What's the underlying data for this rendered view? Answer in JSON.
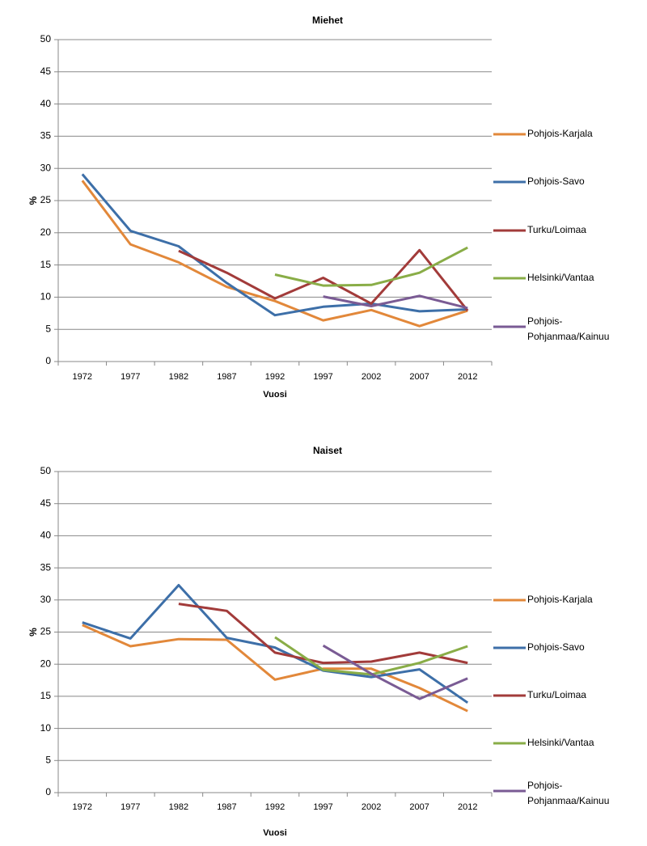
{
  "chart_data": [
    {
      "type": "line",
      "title": "Miehet",
      "xlabel": "Vuosi",
      "ylabel": "%",
      "categories": [
        "1972",
        "1977",
        "1982",
        "1987",
        "1992",
        "1997",
        "2002",
        "2007",
        "2012"
      ],
      "ylim": [
        0,
        50
      ],
      "yticks": [
        0,
        5,
        10,
        15,
        20,
        25,
        30,
        35,
        40,
        45,
        50
      ],
      "grid": true,
      "legend": "right",
      "series": [
        {
          "name": "Pohjois-Karjala",
          "color": "#e2883a",
          "values": [
            28.1,
            18.2,
            15.4,
            11.6,
            9.4,
            6.4,
            8.0,
            5.5,
            7.9
          ]
        },
        {
          "name": "Pohjois-Savo",
          "color": "#3d6fa8",
          "values": [
            29.1,
            20.3,
            17.9,
            12.2,
            7.2,
            8.5,
            9.0,
            7.8,
            8.1
          ]
        },
        {
          "name": "Turku/Loimaa",
          "color": "#a23b3a",
          "values": [
            null,
            null,
            17.2,
            13.8,
            9.8,
            13.0,
            9.0,
            17.3,
            7.9
          ]
        },
        {
          "name": "Helsinki/Vantaa",
          "color": "#89ad47",
          "values": [
            null,
            null,
            null,
            null,
            13.5,
            11.8,
            11.9,
            13.8,
            17.7
          ]
        },
        {
          "name": "Pohjois-Pohjanmaa/Kainuu",
          "color": "#7a5b94",
          "values": [
            null,
            null,
            null,
            null,
            null,
            10.1,
            8.6,
            10.2,
            8.3
          ]
        }
      ]
    },
    {
      "type": "line",
      "title": "Naiset",
      "xlabel": "Vuosi",
      "ylabel": "%",
      "categories": [
        "1972",
        "1977",
        "1982",
        "1987",
        "1992",
        "1997",
        "2002",
        "2007",
        "2012"
      ],
      "ylim": [
        0,
        50
      ],
      "yticks": [
        0,
        5,
        10,
        15,
        20,
        25,
        30,
        35,
        40,
        45,
        50
      ],
      "grid": true,
      "legend": "right",
      "series": [
        {
          "name": "Pohjois-Karjala",
          "color": "#e2883a",
          "values": [
            26.1,
            22.8,
            23.9,
            23.8,
            17.6,
            19.3,
            19.3,
            16.3,
            12.7
          ]
        },
        {
          "name": "Pohjois-Savo",
          "color": "#3d6fa8",
          "values": [
            26.5,
            24.0,
            32.3,
            24.1,
            22.6,
            19.0,
            18.0,
            19.2,
            14.0
          ]
        },
        {
          "name": "Turku/Loimaa",
          "color": "#a23b3a",
          "values": [
            null,
            null,
            29.4,
            28.3,
            21.8,
            20.2,
            20.4,
            21.8,
            20.2
          ]
        },
        {
          "name": "Helsinki/Vantaa",
          "color": "#89ad47",
          "values": [
            null,
            null,
            null,
            null,
            24.2,
            19.1,
            18.4,
            20.2,
            22.8
          ]
        },
        {
          "name": "Pohjois-Pohjanmaa/Kainuu",
          "color": "#7a5b94",
          "values": [
            null,
            null,
            null,
            null,
            null,
            22.9,
            18.5,
            14.6,
            17.8
          ]
        }
      ]
    }
  ]
}
